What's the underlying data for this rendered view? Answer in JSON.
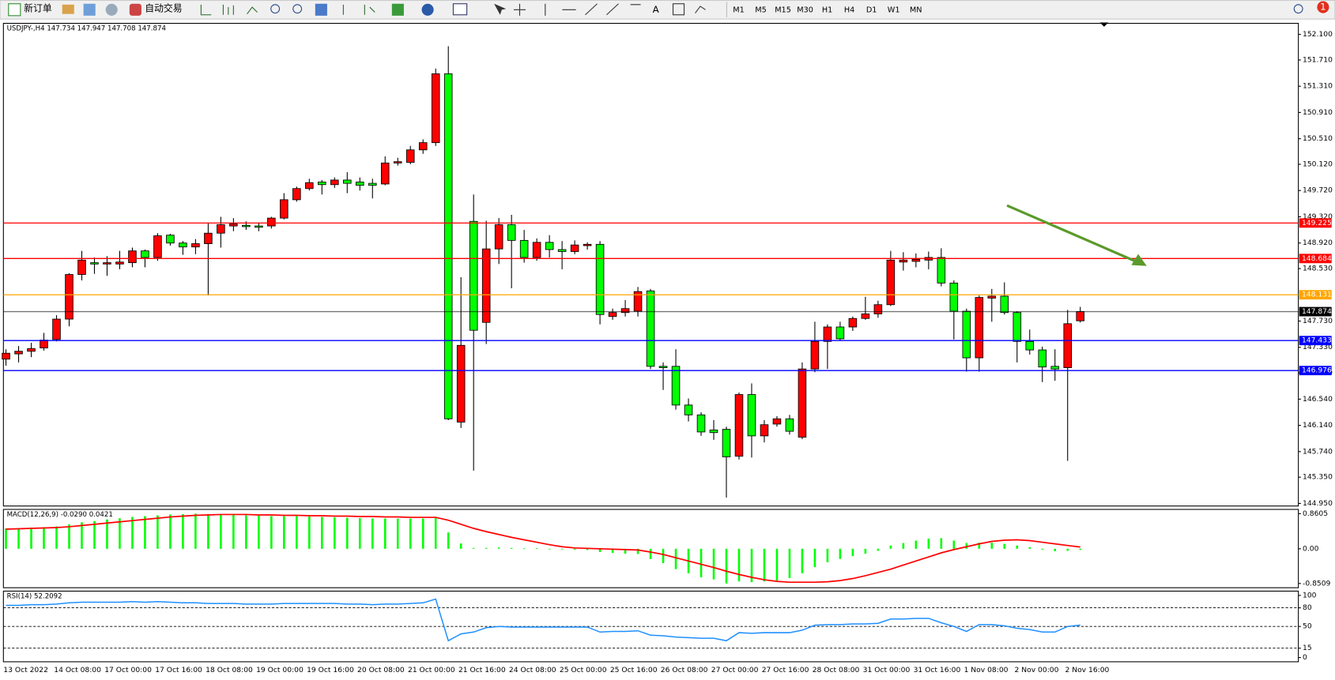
{
  "toolbar": {
    "new_order": "新订单",
    "auto_trading": "自动交易",
    "text_tool": "A",
    "timeframes": [
      "M1",
      "M5",
      "M15",
      "M30",
      "H1",
      "H4",
      "D1",
      "W1",
      "MN"
    ],
    "notifications": 1
  },
  "chart_data": [
    {
      "type": "candlestick",
      "title": "USDJPY-,H4 147.734 147.947 147.708 147.874",
      "categories": [
        "13 Oct 2022",
        null,
        null,
        null,
        "14 Oct 08:00",
        null,
        null,
        null,
        "17 Oct 00:00",
        null,
        null,
        null,
        "17 Oct 16:00",
        null,
        null,
        null,
        "18 Oct 08:00",
        null,
        null,
        null,
        "19 Oct 00:00",
        null,
        null,
        null,
        "19 Oct 16:00",
        null,
        null,
        null,
        "20 Oct 08:00",
        null,
        null,
        null,
        "21 Oct 00:00",
        null,
        null,
        null,
        "21 Oct 16:00",
        null,
        null,
        null,
        "24 Oct 08:00",
        null,
        null,
        null,
        "25 Oct 00:00",
        null,
        null,
        null,
        "25 Oct 16:00",
        null,
        null,
        null,
        "26 Oct 08:00",
        null,
        null,
        null,
        "27 Oct 00:00",
        null,
        null,
        null,
        "27 Oct 16:00",
        null,
        null,
        null,
        "28 Oct 08:00",
        null,
        null,
        null,
        "31 Oct 00:00",
        null,
        null,
        null,
        "31 Oct 16:00",
        null,
        null,
        null,
        "1 Nov 08:00",
        null,
        null,
        null,
        "2 Nov 00:00",
        null,
        null,
        null,
        "2 Nov 16:00",
        null
      ],
      "open": [
        147.15,
        147.23,
        147.27,
        147.32,
        147.45,
        147.76,
        148.44,
        148.62,
        148.6,
        148.6,
        148.62,
        148.8,
        148.7,
        149.04,
        148.92,
        148.86,
        148.91,
        149.07,
        149.18,
        149.19,
        149.18,
        149.18,
        149.3,
        149.58,
        149.75,
        149.85,
        149.81,
        149.88,
        149.85,
        149.83,
        149.82,
        150.14,
        150.15,
        150.34,
        150.45,
        151.5,
        146.19,
        149.25,
        147.71,
        148.83,
        149.2,
        148.96,
        148.7,
        148.93,
        148.82,
        148.79,
        148.88,
        148.9,
        147.8,
        147.86,
        147.88,
        148.19,
        147.04,
        147.04,
        146.45,
        146.3,
        146.07,
        146.08,
        145.67,
        146.61,
        145.98,
        146.16,
        146.24,
        145.96,
        147.0,
        147.42,
        147.64,
        147.64,
        147.77,
        147.84,
        147.98,
        148.63,
        148.64,
        148.66,
        148.7,
        148.31,
        147.88,
        147.17,
        148.08,
        148.11,
        147.86,
        147.42,
        147.29,
        147.04,
        147.02,
        147.734
      ],
      "high": [
        147.3,
        147.35,
        147.4,
        147.55,
        147.82,
        148.46,
        148.8,
        148.7,
        148.72,
        148.8,
        148.85,
        148.82,
        149.07,
        149.06,
        148.95,
        148.98,
        149.22,
        149.32,
        149.3,
        149.25,
        149.22,
        149.32,
        149.68,
        149.78,
        149.9,
        149.88,
        149.92,
        150.0,
        149.92,
        149.9,
        150.24,
        150.22,
        150.4,
        150.5,
        151.58,
        151.92,
        148.4,
        149.66,
        149.26,
        149.3,
        149.35,
        149.12,
        148.99,
        149.04,
        148.95,
        148.96,
        148.93,
        148.95,
        147.92,
        148.05,
        148.25,
        148.22,
        147.1,
        147.3,
        146.55,
        146.34,
        146.22,
        146.12,
        146.64,
        146.78,
        146.22,
        146.28,
        146.3,
        147.1,
        147.72,
        147.68,
        147.72,
        147.8,
        148.1,
        148.04,
        148.8,
        148.78,
        148.76,
        148.79,
        148.84,
        148.35,
        147.92,
        148.12,
        148.22,
        148.32,
        147.88,
        147.6,
        147.34,
        147.3,
        147.9,
        147.947
      ],
      "low": [
        147.05,
        147.1,
        147.18,
        147.28,
        147.42,
        147.65,
        148.35,
        148.45,
        148.42,
        148.52,
        148.55,
        148.55,
        148.65,
        148.88,
        148.74,
        148.75,
        148.12,
        148.85,
        149.1,
        149.12,
        149.1,
        149.14,
        149.28,
        149.55,
        149.72,
        149.66,
        149.76,
        149.68,
        149.72,
        149.6,
        149.8,
        150.1,
        150.12,
        150.28,
        150.4,
        146.22,
        146.1,
        145.45,
        147.38,
        148.6,
        148.23,
        148.62,
        148.65,
        148.7,
        148.52,
        148.75,
        148.82,
        147.68,
        147.75,
        147.8,
        147.8,
        147.0,
        146.68,
        146.38,
        146.2,
        145.98,
        145.92,
        145.04,
        145.62,
        145.65,
        145.88,
        146.12,
        146.0,
        145.93,
        146.95,
        147.0,
        147.43,
        147.58,
        147.75,
        147.78,
        147.96,
        148.5,
        148.55,
        148.52,
        148.26,
        147.45,
        146.96,
        146.96,
        147.72,
        147.83,
        147.1,
        147.22,
        146.8,
        146.82,
        145.6,
        147.708
      ],
      "close": [
        147.24,
        147.27,
        147.31,
        147.44,
        147.76,
        148.44,
        148.66,
        148.6,
        148.62,
        148.63,
        148.8,
        148.7,
        149.03,
        148.92,
        148.86,
        148.91,
        149.07,
        149.2,
        149.21,
        149.17,
        149.16,
        149.3,
        149.58,
        149.75,
        149.84,
        149.81,
        149.88,
        149.83,
        149.8,
        149.8,
        150.14,
        150.16,
        150.34,
        150.45,
        151.5,
        146.24,
        147.36,
        147.59,
        148.83,
        149.2,
        148.96,
        148.7,
        148.93,
        148.82,
        148.79,
        148.89,
        148.9,
        147.83,
        147.86,
        147.92,
        148.18,
        147.04,
        147.02,
        146.45,
        146.3,
        146.04,
        146.03,
        145.66,
        146.61,
        145.98,
        146.15,
        146.24,
        146.05,
        147.0,
        147.42,
        147.64,
        147.46,
        147.77,
        147.84,
        147.98,
        148.66,
        148.66,
        148.67,
        148.7,
        148.31,
        147.88,
        147.17,
        148.09,
        148.11,
        147.86,
        147.42,
        147.29,
        147.03,
        147.0,
        147.69,
        147.874
      ],
      "up_color": "#ff0000",
      "down_color": "#00ff00",
      "ylim": [
        144.911,
        152.269
      ],
      "yticks": [
        {
          "value": 152.1,
          "label": "152.100"
        },
        {
          "value": 151.71,
          "label": "151.710"
        },
        {
          "value": 151.31,
          "label": "151.310"
        },
        {
          "value": 150.91,
          "label": "150.910"
        },
        {
          "value": 150.51,
          "label": "150.510"
        },
        {
          "value": 150.12,
          "label": "150.120"
        },
        {
          "value": 149.72,
          "label": "149.720"
        },
        {
          "value": 149.32,
          "label": "149.320"
        },
        {
          "value": 148.92,
          "label": "148.920"
        },
        {
          "value": 148.53,
          "label": "148.530"
        },
        {
          "value": 147.73,
          "label": "147.730"
        },
        {
          "value": 147.33,
          "label": "147.330"
        },
        {
          "value": 146.94,
          "label": "146.940"
        },
        {
          "value": 146.54,
          "label": "146.540"
        },
        {
          "value": 146.14,
          "label": "146.140"
        },
        {
          "value": 145.74,
          "label": "145.740"
        },
        {
          "value": 145.35,
          "label": "145.350"
        },
        {
          "value": 144.95,
          "label": "144.950"
        }
      ],
      "levels": [
        {
          "value": 149.225,
          "color": "#ff0000"
        },
        {
          "value": 148.684,
          "color": "#ff0000"
        },
        {
          "value": 148.131,
          "color": "#ffa500"
        },
        {
          "value": 147.874,
          "color": "#000000"
        },
        {
          "value": 147.433,
          "color": "#0000ff"
        },
        {
          "value": 146.976,
          "color": "#0000ff"
        }
      ]
    },
    {
      "type": "macd",
      "title": "MACD(12,26,9) -0.0290 0.0421",
      "values": [
        0.5,
        0.5,
        0.52,
        0.53,
        0.55,
        0.6,
        0.65,
        0.68,
        0.72,
        0.75,
        0.78,
        0.8,
        0.82,
        0.84,
        0.85,
        0.86,
        0.85,
        0.84,
        0.83,
        0.82,
        0.81,
        0.8,
        0.8,
        0.8,
        0.79,
        0.78,
        0.77,
        0.76,
        0.75,
        0.74,
        0.74,
        0.74,
        0.74,
        0.74,
        0.75,
        0.4,
        0.13,
        0.02,
        0.02,
        0.03,
        0.02,
        0.01,
        0.01,
        0,
        -0.01,
        -0.02,
        -0.03,
        -0.08,
        -0.1,
        -0.12,
        -0.13,
        -0.25,
        -0.35,
        -0.5,
        -0.6,
        -0.7,
        -0.75,
        -0.85,
        -0.8,
        -0.82,
        -0.8,
        -0.78,
        -0.72,
        -0.6,
        -0.45,
        -0.33,
        -0.25,
        -0.18,
        -0.12,
        -0.05,
        0.08,
        0.14,
        0.2,
        0.25,
        0.26,
        0.2,
        0.14,
        0.15,
        0.15,
        0.12,
        0.08,
        0.04,
        -0.02,
        -0.06,
        -0.05,
        -0.029
      ],
      "signal": [
        0.48,
        0.49,
        0.5,
        0.51,
        0.52,
        0.54,
        0.57,
        0.6,
        0.63,
        0.66,
        0.69,
        0.72,
        0.75,
        0.78,
        0.8,
        0.82,
        0.83,
        0.84,
        0.84,
        0.84,
        0.83,
        0.83,
        0.82,
        0.82,
        0.81,
        0.81,
        0.8,
        0.8,
        0.79,
        0.79,
        0.78,
        0.78,
        0.77,
        0.77,
        0.77,
        0.7,
        0.6,
        0.5,
        0.42,
        0.35,
        0.28,
        0.22,
        0.16,
        0.1,
        0.05,
        0.02,
        0.01,
        0,
        -0.01,
        -0.02,
        -0.03,
        -0.08,
        -0.14,
        -0.22,
        -0.3,
        -0.38,
        -0.46,
        -0.55,
        -0.63,
        -0.7,
        -0.76,
        -0.8,
        -0.82,
        -0.82,
        -0.82,
        -0.81,
        -0.78,
        -0.73,
        -0.66,
        -0.58,
        -0.5,
        -0.4,
        -0.3,
        -0.2,
        -0.1,
        -0.02,
        0.05,
        0.12,
        0.18,
        0.21,
        0.22,
        0.2,
        0.16,
        0.12,
        0.08,
        0.0421
      ],
      "color": "#00ff00",
      "signal_color": "#ff0000",
      "ylim": [
        -0.955,
        0.965
      ],
      "yticks": [
        0.8605,
        {
          "value": 0,
          "label": "0.00"
        },
        -0.8509
      ]
    },
    {
      "type": "line",
      "title": "RSI(14) 52.2092",
      "values": [
        84,
        84,
        85,
        85,
        86,
        88,
        89,
        89,
        89,
        89,
        90,
        89,
        90,
        89,
        88,
        88,
        87,
        87,
        87,
        86,
        86,
        86,
        87,
        87,
        87,
        87,
        87,
        86,
        86,
        85,
        86,
        86,
        87,
        88,
        94,
        27,
        38,
        41,
        48,
        50,
        49,
        49,
        49,
        49,
        49,
        49,
        49,
        41,
        42,
        42,
        43,
        36,
        35,
        33,
        32,
        31,
        31,
        27,
        40,
        39,
        40,
        40,
        40,
        44,
        52,
        53,
        53,
        54,
        54,
        55,
        62,
        62,
        63,
        63,
        56,
        50,
        42,
        53,
        53,
        51,
        47,
        45,
        41,
        41,
        50,
        52.2092
      ],
      "color": "#1e90ff",
      "ylim": [
        -6.85,
        106.85
      ],
      "yticks": [
        100,
        80,
        50,
        15,
        0
      ],
      "levels": [
        80,
        50,
        15
      ]
    }
  ]
}
